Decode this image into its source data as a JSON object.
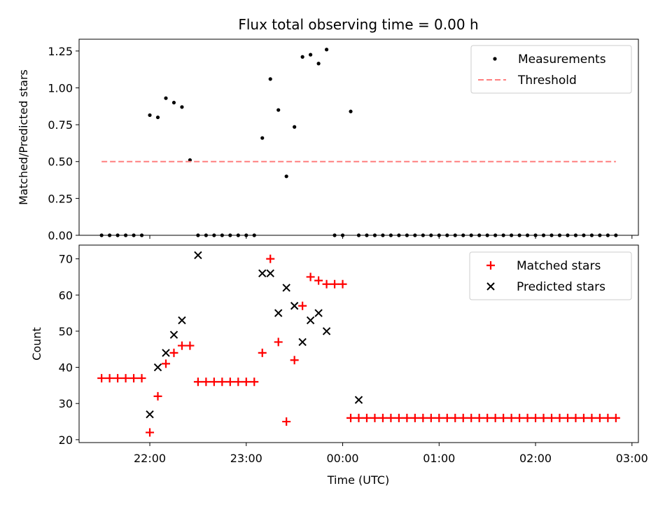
{
  "chart_data": [
    {
      "type": "scatter",
      "title": "Flux total observing time = 0.00 h",
      "xlabel": "",
      "ylabel": "Matched/Predicted stars",
      "xlim": [
        "21:16",
        "03:04"
      ],
      "ylim": [
        0,
        1.33
      ],
      "yticks": [
        0.0,
        0.25,
        0.5,
        0.75,
        1.0,
        1.25
      ],
      "ytick_labels": [
        "0.00",
        "0.25",
        "0.50",
        "0.75",
        "1.00",
        "1.25"
      ],
      "grid": false,
      "legend": {
        "placement": "top-right",
        "entries": [
          "Measurements",
          "Threshold"
        ]
      },
      "series": [
        {
          "name": "Measurements",
          "color": "#000000",
          "marker": "dot",
          "x": [
            "21:30",
            "21:35",
            "21:40",
            "21:45",
            "21:50",
            "21:55",
            "22:00",
            "22:05",
            "22:10",
            "22:15",
            "22:20",
            "22:25",
            "22:30",
            "22:35",
            "22:40",
            "22:45",
            "22:50",
            "22:55",
            "23:00",
            "23:05",
            "23:10",
            "23:15",
            "23:20",
            "23:25",
            "23:30",
            "23:35",
            "23:40",
            "23:45",
            "23:50",
            "23:55",
            "00:00",
            "00:05",
            "00:10",
            "00:15",
            "00:20",
            "00:25",
            "00:30",
            "00:35",
            "00:40",
            "00:45",
            "00:50",
            "00:55",
            "01:00",
            "01:05",
            "01:10",
            "01:15",
            "01:20",
            "01:25",
            "01:30",
            "01:35",
            "01:40",
            "01:45",
            "01:50",
            "01:55",
            "02:00",
            "02:05",
            "02:10",
            "02:15",
            "02:20",
            "02:25",
            "02:30",
            "02:35",
            "02:40",
            "02:45",
            "02:50"
          ],
          "y": [
            0,
            0,
            0,
            0,
            0,
            0,
            0.815,
            0.8,
            0.93,
            0.9,
            0.87,
            0.51,
            0,
            0,
            0,
            0,
            0,
            0,
            0,
            0,
            0.66,
            1.06,
            0.85,
            0.4,
            0.735,
            1.21,
            1.225,
            1.165,
            1.26,
            0,
            0,
            0.84,
            0,
            0,
            0,
            0,
            0,
            0,
            0,
            0,
            0,
            0,
            0,
            0,
            0,
            0,
            0,
            0,
            0,
            0,
            0,
            0,
            0,
            0,
            0,
            0,
            0,
            0,
            0,
            0,
            0,
            0,
            0,
            0,
            0
          ]
        },
        {
          "name": "Threshold",
          "color": "#ff7f7f",
          "line_style": "dashed",
          "x": [
            "21:30",
            "02:50"
          ],
          "y": [
            0.5,
            0.5
          ]
        }
      ]
    },
    {
      "type": "scatter",
      "title": "",
      "xlabel": "Time (UTC)",
      "ylabel": "Count",
      "xlim": [
        "21:16",
        "03:04"
      ],
      "ylim": [
        19.2,
        73.8
      ],
      "yticks": [
        20,
        30,
        40,
        50,
        60,
        70
      ],
      "ytick_labels": [
        "20",
        "30",
        "40",
        "50",
        "60",
        "70"
      ],
      "xticks": [
        "22:00",
        "23:00",
        "00:00",
        "01:00",
        "02:00",
        "03:00"
      ],
      "grid": false,
      "legend": {
        "placement": "top-right",
        "entries": [
          "Matched stars",
          "Predicted stars"
        ]
      },
      "series": [
        {
          "name": "Matched stars",
          "color": "#ff0000",
          "marker": "plus",
          "x": [
            "21:30",
            "21:35",
            "21:40",
            "21:45",
            "21:50",
            "21:55",
            "22:00",
            "22:05",
            "22:10",
            "22:15",
            "22:20",
            "22:25",
            "22:30",
            "22:35",
            "22:40",
            "22:45",
            "22:50",
            "22:55",
            "23:00",
            "23:05",
            "23:10",
            "23:15",
            "23:20",
            "23:25",
            "23:30",
            "23:35",
            "23:40",
            "23:45",
            "23:50",
            "23:55",
            "00:00",
            "00:05",
            "00:10",
            "00:15",
            "00:20",
            "00:25",
            "00:30",
            "00:35",
            "00:40",
            "00:45",
            "00:50",
            "00:55",
            "01:00",
            "01:05",
            "01:10",
            "01:15",
            "01:20",
            "01:25",
            "01:30",
            "01:35",
            "01:40",
            "01:45",
            "01:50",
            "01:55",
            "02:00",
            "02:05",
            "02:10",
            "02:15",
            "02:20",
            "02:25",
            "02:30",
            "02:35",
            "02:40",
            "02:45",
            "02:50"
          ],
          "y": [
            37,
            37,
            37,
            37,
            37,
            37,
            22,
            32,
            41,
            44,
            46,
            46,
            36,
            36,
            36,
            36,
            36,
            36,
            36,
            36,
            44,
            70,
            47,
            25,
            42,
            57,
            65,
            64,
            63,
            63,
            63,
            26,
            26,
            26,
            26,
            26,
            26,
            26,
            26,
            26,
            26,
            26,
            26,
            26,
            26,
            26,
            26,
            26,
            26,
            26,
            26,
            26,
            26,
            26,
            26,
            26,
            26,
            26,
            26,
            26,
            26,
            26,
            26,
            26,
            26
          ]
        },
        {
          "name": "Predicted stars",
          "color": "#000000",
          "marker": "x",
          "x": [
            "22:00",
            "22:05",
            "22:10",
            "22:15",
            "22:20",
            "22:30",
            "23:10",
            "23:15",
            "23:20",
            "23:25",
            "23:30",
            "23:35",
            "23:40",
            "23:45",
            "23:50",
            "00:10"
          ],
          "y": [
            27,
            40,
            44,
            49,
            53,
            71,
            66,
            66,
            55,
            62,
            57,
            47,
            53,
            55,
            50,
            31
          ]
        }
      ]
    }
  ]
}
